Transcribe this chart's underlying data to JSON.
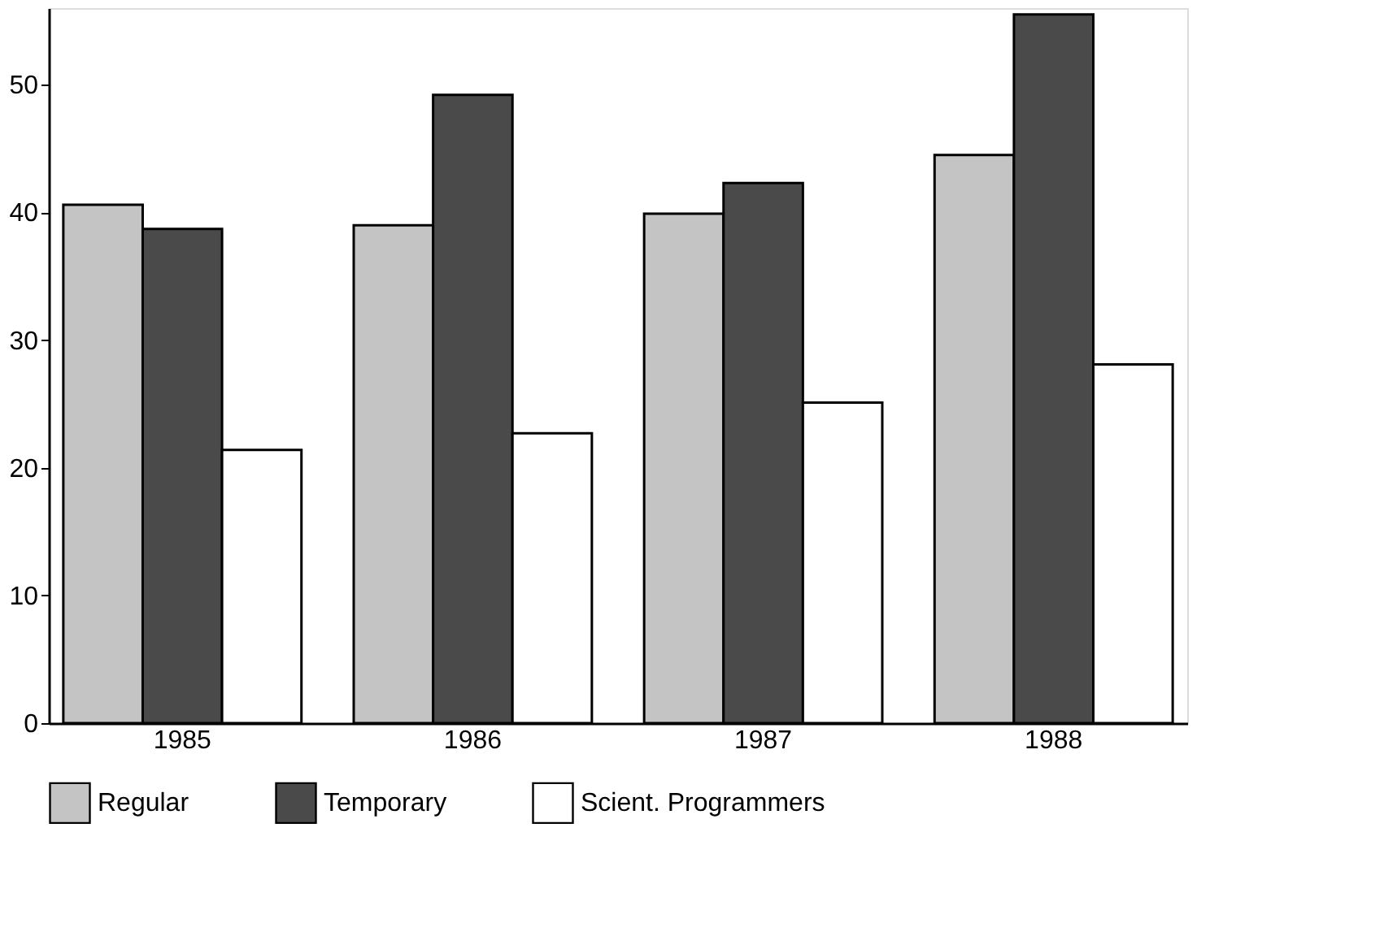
{
  "chart_data": {
    "type": "bar",
    "categories": [
      "1985",
      "1986",
      "1987",
      "1988"
    ],
    "series": [
      {
        "name": "Regular",
        "color": "#c4c4c4",
        "values": [
          40.6,
          39.0,
          39.9,
          44.5
        ]
      },
      {
        "name": "Temporary",
        "color": "#4a4a4a",
        "values": [
          38.7,
          49.2,
          42.3,
          55.5
        ]
      },
      {
        "name": "Scient. Programmers",
        "color": "#ffffff",
        "values": [
          21.4,
          22.7,
          25.1,
          28.1
        ]
      }
    ],
    "ylim": [
      0,
      56
    ],
    "yticks": [
      0,
      10,
      20,
      30,
      40,
      50
    ],
    "grid": false,
    "legend": "bottom"
  }
}
